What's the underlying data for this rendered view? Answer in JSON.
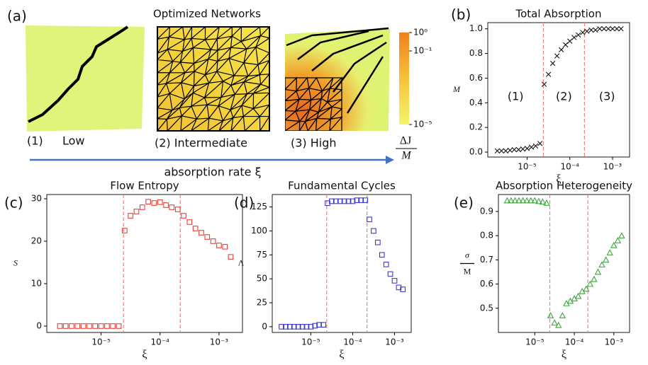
{
  "panel_a": {
    "label": "(a)",
    "title": "Optimized Networks",
    "networks": [
      "(1)",
      "Low",
      "(2) Intermediate",
      "(3) High"
    ],
    "arrow_label": "absorption rate ξ",
    "colorbar": {
      "scale": "log",
      "lim": [
        1e-05,
        1
      ],
      "ticks": [
        {
          "value": 1,
          "label": "10⁰"
        },
        {
          "value": 0.1,
          "label": "10⁻¹"
        },
        {
          "value": 1e-05,
          "label": "10⁻⁵"
        }
      ],
      "label": [
        "ΔJ",
        "M"
      ]
    }
  },
  "chart_data": [
    {
      "type": "scatter",
      "label": "(b)",
      "title": "Total Absorption",
      "xlabel": "ξ",
      "ylabel": "M",
      "marker": "x",
      "color": "#111111",
      "xscale": "log",
      "xlim": [
        1.2e-06,
        0.0025
      ],
      "xticks": [
        {
          "value": 1e-05,
          "label": "10⁻⁵"
        },
        {
          "value": 0.0001,
          "label": "10⁻⁴"
        },
        {
          "value": 0.001,
          "label": "10⁻³"
        }
      ],
      "ylim": [
        -0.04,
        1.05
      ],
      "yticks": [
        {
          "value": 0,
          "label": "0.0"
        },
        0.2,
        0.4,
        0.6,
        0.8,
        {
          "value": 1,
          "label": "1.0"
        }
      ],
      "vlines": [
        2.4e-05,
        0.00022
      ],
      "vline_color": "#f08080",
      "regions": [
        "(1)",
        "(2)",
        "(3)"
      ],
      "x": [
        2e-06,
        2.51e-06,
        3.16e-06,
        3.98e-06,
        5.01e-06,
        6.31e-06,
        7.94e-06,
        1e-05,
        1.26e-05,
        1.58e-05,
        2e-05,
        2.51e-05,
        3.16e-05,
        3.98e-05,
        5.01e-05,
        6.31e-05,
        7.94e-05,
        0.0001,
        0.000126,
        0.000158,
        0.0002,
        0.000251,
        0.000316,
        0.000398,
        0.000501,
        0.000631,
        0.000794,
        0.001,
        0.00126,
        0.00158
      ],
      "values": [
        0.01,
        0.01,
        0.01,
        0.015,
        0.02,
        0.02,
        0.025,
        0.03,
        0.04,
        0.05,
        0.07,
        0.55,
        0.63,
        0.72,
        0.78,
        0.83,
        0.87,
        0.9,
        0.93,
        0.95,
        0.97,
        0.98,
        0.99,
        0.99,
        1.0,
        1.0,
        1.0,
        1.0,
        1.0,
        1.0
      ]
    },
    {
      "type": "scatter",
      "label": "(c)",
      "title": "Flow Entropy",
      "xlabel": "ξ",
      "ylabel": "S",
      "marker": "square",
      "color": "#e8403a",
      "xscale": "log",
      "xlim": [
        1.2e-06,
        0.0025
      ],
      "xticks": [
        {
          "value": 1e-05,
          "label": "10⁻⁵"
        },
        {
          "value": 0.0001,
          "label": "10⁻⁴"
        },
        {
          "value": 0.001,
          "label": "10⁻³"
        }
      ],
      "ylim": [
        -1.5,
        31
      ],
      "yticks": [
        0,
        10,
        20,
        30
      ],
      "vlines": [
        2.4e-05,
        0.00022
      ],
      "vline_color": "#f08080",
      "x": [
        2e-06,
        2.51e-06,
        3.16e-06,
        3.98e-06,
        5.01e-06,
        6.31e-06,
        7.94e-06,
        1e-05,
        1.26e-05,
        1.58e-05,
        2e-05,
        2.51e-05,
        3.16e-05,
        3.98e-05,
        5.01e-05,
        6.31e-05,
        7.94e-05,
        0.0001,
        0.000126,
        0.000158,
        0.0002,
        0.000251,
        0.000316,
        0.000398,
        0.000501,
        0.000631,
        0.000794,
        0.001,
        0.00126,
        0.00158
      ],
      "values": [
        0,
        0,
        0,
        0,
        0,
        0,
        0,
        0,
        0,
        0,
        0,
        22.5,
        26,
        27,
        28,
        29.3,
        29,
        29.2,
        28.5,
        28,
        27.5,
        26,
        24.5,
        23,
        22,
        21,
        20,
        19,
        18.7,
        16.3
      ]
    },
    {
      "type": "scatter",
      "label": "(d)",
      "title": "Fundamental Cycles",
      "xlabel": "ξ",
      "ylabel": "Λ",
      "marker": "square",
      "color": "#3a3ad8",
      "xscale": "log",
      "xlim": [
        1.2e-06,
        0.0025
      ],
      "xticks": [
        {
          "value": 1e-05,
          "label": "10⁻⁵"
        },
        {
          "value": 0.0001,
          "label": "10⁻⁴"
        },
        {
          "value": 0.001,
          "label": "10⁻³"
        }
      ],
      "ylim": [
        -6,
        138
      ],
      "yticks": [
        0,
        25,
        50,
        75,
        100,
        125
      ],
      "vlines": [
        2.4e-05,
        0.00022
      ],
      "vline_color": "#f08080",
      "x": [
        2e-06,
        2.51e-06,
        3.16e-06,
        3.98e-06,
        5.01e-06,
        6.31e-06,
        7.94e-06,
        1e-05,
        1.26e-05,
        1.58e-05,
        2e-05,
        2.51e-05,
        3.16e-05,
        3.98e-05,
        5.01e-05,
        6.31e-05,
        7.94e-05,
        0.0001,
        0.000126,
        0.000158,
        0.0002,
        0.000251,
        0.000316,
        0.000398,
        0.000501,
        0.000631,
        0.000794,
        0.001,
        0.00126,
        0.00158
      ],
      "values": [
        0,
        0,
        0,
        0,
        0,
        0,
        0,
        0,
        1,
        2,
        2,
        129,
        131,
        131,
        131,
        131,
        131,
        131,
        132,
        132,
        132,
        112,
        100,
        88,
        75,
        65,
        55,
        48,
        41,
        39
      ]
    },
    {
      "type": "scatter",
      "label": "(e)",
      "title": "Absorption Heterogeneity",
      "xlabel": "ξ",
      "ylabel": [
        "σ",
        "M"
      ],
      "marker": "triangle",
      "color": "#3aa83a",
      "xscale": "log",
      "xlim": [
        1.2e-06,
        0.0025
      ],
      "xticks": [
        {
          "value": 1e-05,
          "label": "10⁻⁵"
        },
        {
          "value": 0.0001,
          "label": "10⁻⁴"
        },
        {
          "value": 0.001,
          "label": "10⁻³"
        }
      ],
      "ylim": [
        0.4,
        0.97
      ],
      "yticks": [
        0.5,
        0.6,
        0.7,
        0.8,
        0.9
      ],
      "vlines": [
        2.4e-05,
        0.00022
      ],
      "vline_color": "#f08080",
      "x": [
        2e-06,
        2.51e-06,
        3.16e-06,
        3.98e-06,
        5.01e-06,
        6.31e-06,
        7.94e-06,
        1e-05,
        1.26e-05,
        1.58e-05,
        2e-05,
        2.51e-05,
        3.16e-05,
        3.98e-05,
        5.01e-05,
        6.31e-05,
        7.94e-05,
        0.0001,
        0.000126,
        0.000158,
        0.0002,
        0.000251,
        0.000316,
        0.000398,
        0.000501,
        0.000631,
        0.000794,
        0.001,
        0.00126,
        0.00158
      ],
      "values": [
        0.945,
        0.945,
        0.945,
        0.945,
        0.945,
        0.945,
        0.945,
        0.945,
        0.942,
        0.94,
        0.935,
        0.47,
        0.44,
        0.43,
        0.47,
        0.52,
        0.53,
        0.54,
        0.55,
        0.57,
        0.58,
        0.6,
        0.62,
        0.65,
        0.68,
        0.7,
        0.73,
        0.76,
        0.78,
        0.8
      ]
    }
  ]
}
